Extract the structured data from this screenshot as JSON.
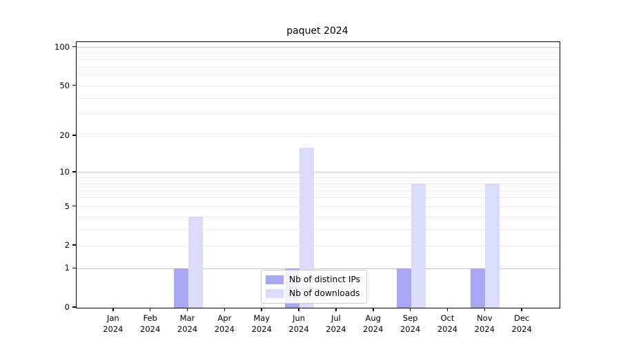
{
  "title": "paquet 2024",
  "legend": {
    "entries": [
      {
        "label": "Nb of distinct IPs",
        "color": "#a8a8f2"
      },
      {
        "label": "Nb of downloads",
        "color": "#dbdbfa"
      }
    ]
  },
  "chart_data": {
    "type": "bar",
    "title": "paquet 2024",
    "xlabel": "",
    "ylabel": "",
    "scale": "log1p",
    "ylim": [
      0,
      110
    ],
    "grid": "on",
    "legend_position": "bottom-center",
    "yticks": [
      0,
      1,
      2,
      5,
      10,
      20,
      50,
      100
    ],
    "categories": [
      {
        "month": "Jan",
        "year": "2024"
      },
      {
        "month": "Feb",
        "year": "2024"
      },
      {
        "month": "Mar",
        "year": "2024"
      },
      {
        "month": "Apr",
        "year": "2024"
      },
      {
        "month": "May",
        "year": "2024"
      },
      {
        "month": "Jun",
        "year": "2024"
      },
      {
        "month": "Jul",
        "year": "2024"
      },
      {
        "month": "Aug",
        "year": "2024"
      },
      {
        "month": "Sep",
        "year": "2024"
      },
      {
        "month": "Oct",
        "year": "2024"
      },
      {
        "month": "Nov",
        "year": "2024"
      },
      {
        "month": "Dec",
        "year": "2024"
      }
    ],
    "series": [
      {
        "name": "Nb of distinct IPs",
        "color": "#a8a8f2",
        "values": [
          0,
          0,
          1,
          0,
          0,
          1,
          0,
          0,
          1,
          0,
          1,
          0
        ]
      },
      {
        "name": "Nb of downloads",
        "color": "#dbdbfa",
        "values": [
          0,
          0,
          4,
          0,
          0,
          16,
          0,
          0,
          8,
          0,
          8,
          0
        ]
      }
    ]
  }
}
